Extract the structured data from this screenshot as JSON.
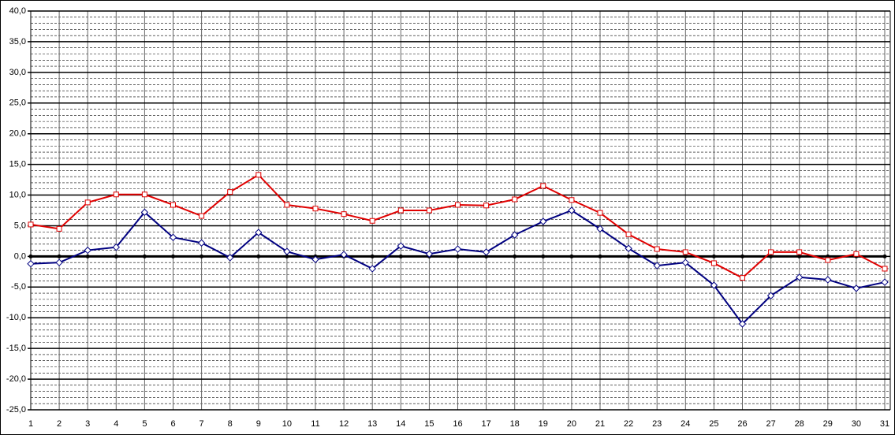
{
  "chart_data": {
    "type": "line",
    "x": [
      1,
      2,
      3,
      4,
      5,
      6,
      7,
      8,
      9,
      10,
      11,
      12,
      13,
      14,
      15,
      16,
      17,
      18,
      19,
      20,
      21,
      22,
      23,
      24,
      25,
      26,
      27,
      28,
      29,
      30,
      31
    ],
    "xlim": [
      1,
      31
    ],
    "xticks": [
      1,
      2,
      3,
      4,
      5,
      6,
      7,
      8,
      9,
      10,
      11,
      12,
      13,
      14,
      15,
      16,
      17,
      18,
      19,
      20,
      21,
      22,
      23,
      24,
      25,
      26,
      27,
      28,
      29,
      30,
      31
    ],
    "ylim": [
      -25,
      40
    ],
    "yticks": [
      {
        "value": -25,
        "label": "-25,0"
      },
      {
        "value": -20,
        "label": "-20,0"
      },
      {
        "value": -15,
        "label": "-15,0"
      },
      {
        "value": -10,
        "label": "-10,0"
      },
      {
        "value": -5,
        "label": "-5,0"
      },
      {
        "value": 0,
        "label": "0,0"
      },
      {
        "value": 5,
        "label": "5,0"
      },
      {
        "value": 10,
        "label": "10,0"
      },
      {
        "value": 15,
        "label": "15,0"
      },
      {
        "value": 20,
        "label": "20,0"
      },
      {
        "value": 25,
        "label": "25,0"
      },
      {
        "value": 30,
        "label": "30,0"
      },
      {
        "value": 35,
        "label": "35,0"
      },
      {
        "value": 40,
        "label": "40,0"
      }
    ],
    "grid": true,
    "minor_grid": true,
    "series": [
      {
        "color": "#000000",
        "marker": "circle",
        "line_width": 3,
        "values": [
          0,
          0,
          0,
          0,
          0,
          0,
          0,
          0,
          0,
          0,
          0,
          0,
          0,
          0,
          0,
          0,
          0,
          0,
          0,
          0,
          0,
          0,
          0,
          0,
          0,
          0,
          0,
          0,
          0,
          0,
          0
        ]
      },
      {
        "color": "#000080",
        "marker": "diamond",
        "line_width": 2,
        "values": [
          -1.2,
          -1.0,
          1.0,
          1.5,
          7.2,
          3.1,
          2.2,
          -0.2,
          3.9,
          0.8,
          -0.5,
          0.3,
          -2.0,
          1.7,
          0.4,
          1.2,
          0.7,
          3.5,
          5.7,
          7.5,
          4.5,
          1.3,
          -1.5,
          -1.0,
          -4.7,
          -11.0,
          -6.4,
          -3.4,
          -3.8,
          -5.2,
          -4.2
        ]
      },
      {
        "color": "#e00000",
        "marker": "square",
        "line_width": 2,
        "values": [
          5.2,
          4.5,
          8.8,
          10.1,
          10.1,
          8.4,
          6.6,
          10.5,
          13.3,
          8.4,
          7.8,
          6.9,
          5.8,
          7.5,
          7.5,
          8.4,
          8.3,
          9.3,
          11.5,
          9.2,
          7.1,
          3.6,
          1.2,
          0.7,
          -1.1,
          -3.5,
          0.7,
          0.7,
          -0.6,
          0.4,
          -2.0
        ]
      }
    ]
  }
}
